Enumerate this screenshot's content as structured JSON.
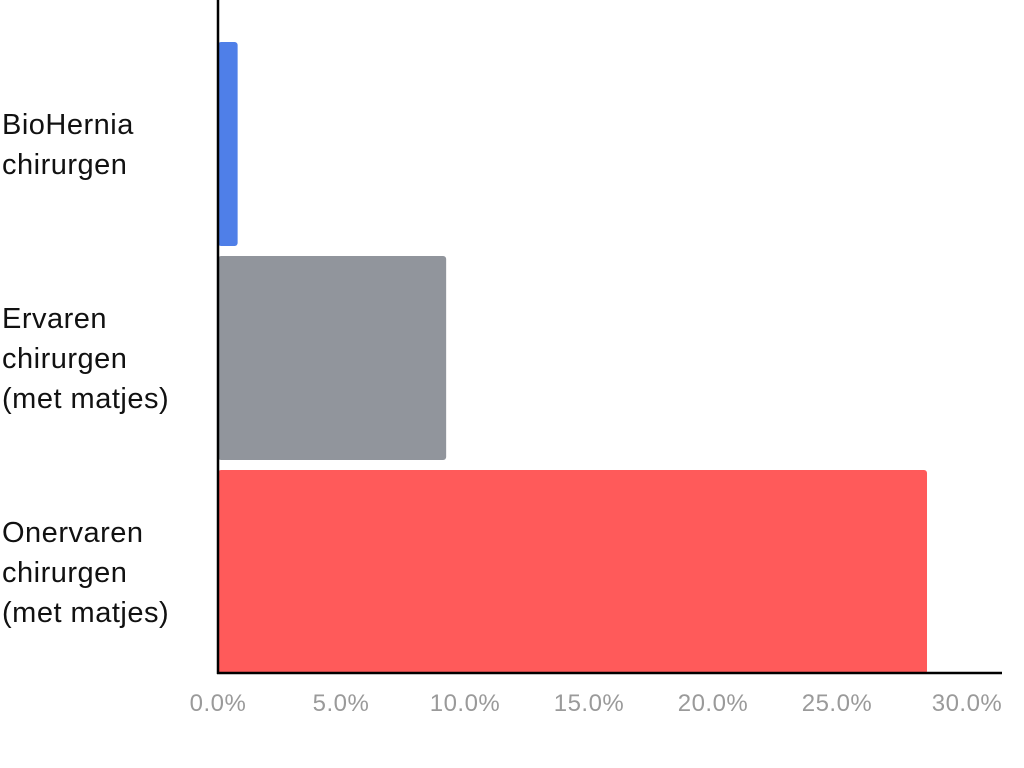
{
  "chart_data": {
    "type": "bar",
    "orientation": "horizontal",
    "title": "",
    "xlabel": "",
    "ylabel": "",
    "categories": [
      [
        "BioHernia",
        "chirurgen"
      ],
      [
        "Ervaren",
        "chirurgen",
        "(met matjes)"
      ],
      [
        "Onervaren",
        "chirurgen",
        "(met matjes)"
      ]
    ],
    "values": [
      0.8,
      9.3,
      28.9
    ],
    "colors": [
      "#4F7FE8",
      "#91959C",
      "#FF5A5A"
    ],
    "xlim": [
      0,
      30
    ],
    "xticks": [
      "0.0%",
      "5.0%",
      "10.0%",
      "15.0%",
      "20.0%",
      "25.0%",
      "30.0%"
    ],
    "tick_values": [
      0,
      5,
      10,
      15,
      20,
      25,
      30
    ],
    "grid": false,
    "legend": "none"
  }
}
